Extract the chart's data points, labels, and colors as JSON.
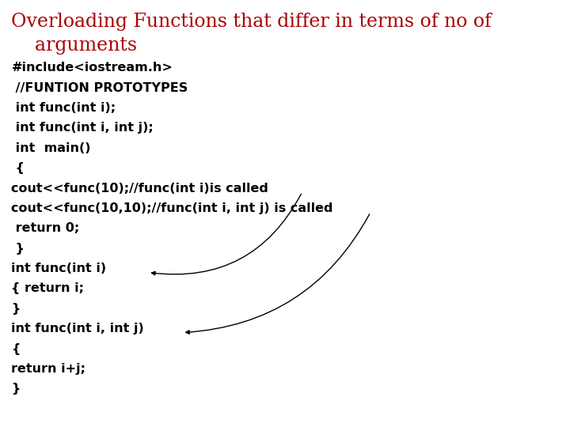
{
  "title_line1": "Overloading Functions that differ in terms of no of",
  "title_line2": "    arguments",
  "title_color": "#aa0000",
  "title_fontsize": 17,
  "bg_color": "#ffffff",
  "code_fontsize": 11.5,
  "code_lines": [
    {
      "text": "#include<iostream.h>",
      "indent": 0
    },
    {
      "text": " //FUNTION PROTOTYPES",
      "indent": 0
    },
    {
      "text": " int func(int i);",
      "indent": 0
    },
    {
      "text": " int func(int i, int j);",
      "indent": 0
    },
    {
      "text": " int  main()",
      "indent": 0
    },
    {
      "text": " {",
      "indent": 0
    },
    {
      "text": "cout<<func(10);//func(int i)is called",
      "indent": 0
    },
    {
      "text": "cout<<func(10,10);//func(int i, int j) is called",
      "indent": 0
    },
    {
      "text": " return 0;",
      "indent": 0
    },
    {
      "text": " }",
      "indent": 0
    },
    {
      "text": "int func(int i)",
      "indent": 0
    },
    {
      "text": "{ return i;",
      "indent": 0
    },
    {
      "text": "}",
      "indent": 0
    },
    {
      "text": "int func(int i, int j)",
      "indent": 0
    },
    {
      "text": "{",
      "indent": 0
    },
    {
      "text": "return i+j;",
      "indent": 0
    },
    {
      "text": "}",
      "indent": 0
    }
  ],
  "arrow_color": "black",
  "arrow_lw": 1.0
}
